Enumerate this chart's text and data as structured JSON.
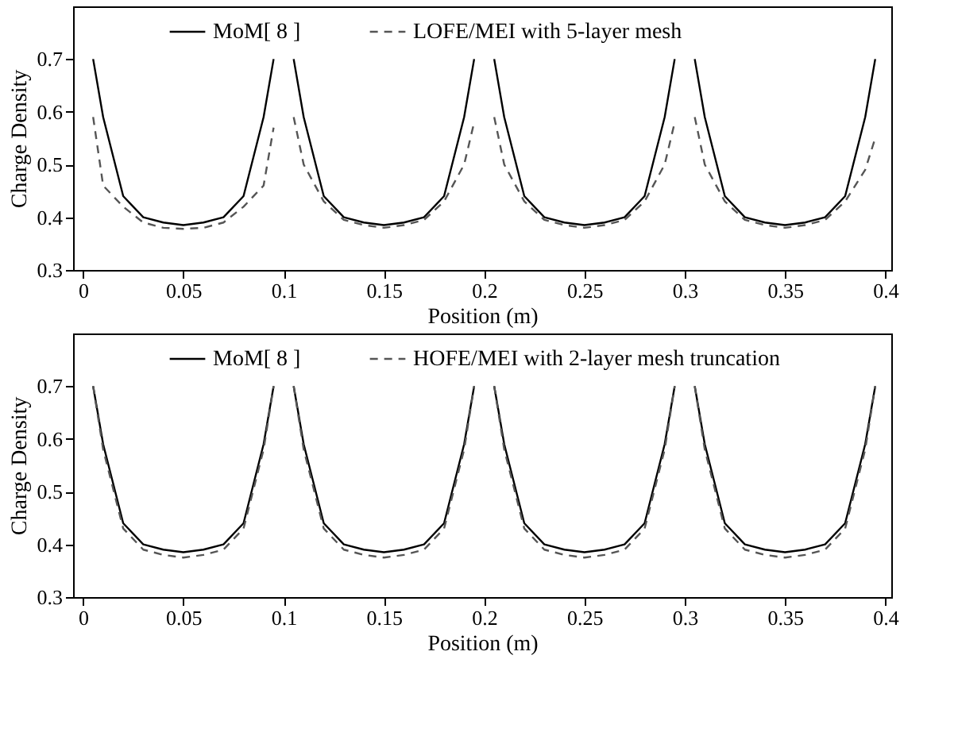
{
  "chart_data": [
    {
      "type": "line",
      "xlabel": "Position (m)",
      "ylabel": "Charge Density",
      "xlim": [
        -0.005,
        0.403
      ],
      "ylim": [
        0.3,
        0.8
      ],
      "xticks": [
        0,
        0.05,
        0.1,
        0.15,
        0.2,
        0.25,
        0.3,
        0.35,
        0.4
      ],
      "yticks": [
        0.3,
        0.4,
        0.5,
        0.6,
        0.7
      ],
      "grid": false,
      "legend": "top",
      "marker": "none",
      "series": [
        {
          "name": "MoM[ 8 ]",
          "color": "#000000",
          "line_style": "solid",
          "x": [
            0.005,
            0.01,
            0.02,
            0.03,
            0.04,
            0.05,
            0.06,
            0.07,
            0.08,
            0.09,
            0.095,
            0.1,
            0.105,
            0.11,
            0.12,
            0.13,
            0.14,
            0.15,
            0.16,
            0.17,
            0.18,
            0.19,
            0.195,
            0.2,
            0.205,
            0.21,
            0.22,
            0.23,
            0.24,
            0.25,
            0.26,
            0.27,
            0.28,
            0.29,
            0.295,
            0.3,
            0.305,
            0.31,
            0.32,
            0.33,
            0.34,
            0.35,
            0.36,
            0.37,
            0.38,
            0.39,
            0.395
          ],
          "values": [
            0.7,
            0.59,
            0.44,
            0.4,
            0.39,
            0.385,
            0.39,
            0.4,
            0.44,
            0.59,
            0.7,
            null,
            0.7,
            0.59,
            0.44,
            0.4,
            0.39,
            0.385,
            0.39,
            0.4,
            0.44,
            0.59,
            0.7,
            null,
            0.7,
            0.59,
            0.44,
            0.4,
            0.39,
            0.385,
            0.39,
            0.4,
            0.44,
            0.59,
            0.7,
            null,
            0.7,
            0.59,
            0.44,
            0.4,
            0.39,
            0.385,
            0.39,
            0.4,
            0.44,
            0.59,
            0.7
          ]
        },
        {
          "name": "LOFE/MEI with 5-layer mesh",
          "color": "#555555",
          "line_style": "dashed",
          "x": [
            0.005,
            0.01,
            0.02,
            0.03,
            0.04,
            0.05,
            0.06,
            0.07,
            0.08,
            0.09,
            0.095,
            0.1,
            0.105,
            0.11,
            0.12,
            0.13,
            0.14,
            0.15,
            0.16,
            0.17,
            0.18,
            0.19,
            0.195,
            0.2,
            0.205,
            0.21,
            0.22,
            0.23,
            0.24,
            0.25,
            0.26,
            0.27,
            0.28,
            0.29,
            0.295,
            0.3,
            0.305,
            0.31,
            0.32,
            0.33,
            0.34,
            0.35,
            0.36,
            0.37,
            0.38,
            0.39,
            0.395
          ],
          "values": [
            0.59,
            0.46,
            0.42,
            0.39,
            0.38,
            0.378,
            0.38,
            0.39,
            0.42,
            0.46,
            0.57,
            null,
            0.59,
            0.5,
            0.43,
            0.395,
            0.385,
            0.38,
            0.385,
            0.395,
            0.43,
            0.5,
            0.58,
            null,
            0.59,
            0.5,
            0.43,
            0.395,
            0.385,
            0.38,
            0.385,
            0.395,
            0.43,
            0.5,
            0.58,
            null,
            0.59,
            0.5,
            0.43,
            0.395,
            0.385,
            0.38,
            0.385,
            0.395,
            0.43,
            0.49,
            0.55
          ]
        }
      ]
    },
    {
      "type": "line",
      "xlabel": "Position (m)",
      "ylabel": "Charge Density",
      "xlim": [
        -0.005,
        0.403
      ],
      "ylim": [
        0.3,
        0.8
      ],
      "xticks": [
        0,
        0.05,
        0.1,
        0.15,
        0.2,
        0.25,
        0.3,
        0.35,
        0.4
      ],
      "yticks": [
        0.3,
        0.4,
        0.5,
        0.6,
        0.7
      ],
      "grid": false,
      "legend": "top",
      "marker": "none",
      "series": [
        {
          "name": "MoM[ 8 ]",
          "color": "#000000",
          "line_style": "solid",
          "x": [
            0.005,
            0.01,
            0.02,
            0.03,
            0.04,
            0.05,
            0.06,
            0.07,
            0.08,
            0.09,
            0.095,
            0.1,
            0.105,
            0.11,
            0.12,
            0.13,
            0.14,
            0.15,
            0.16,
            0.17,
            0.18,
            0.19,
            0.195,
            0.2,
            0.205,
            0.21,
            0.22,
            0.23,
            0.24,
            0.25,
            0.26,
            0.27,
            0.28,
            0.29,
            0.295,
            0.3,
            0.305,
            0.31,
            0.32,
            0.33,
            0.34,
            0.35,
            0.36,
            0.37,
            0.38,
            0.39,
            0.395
          ],
          "values": [
            0.7,
            0.59,
            0.44,
            0.4,
            0.39,
            0.385,
            0.39,
            0.4,
            0.44,
            0.59,
            0.7,
            null,
            0.7,
            0.59,
            0.44,
            0.4,
            0.39,
            0.385,
            0.39,
            0.4,
            0.44,
            0.59,
            0.7,
            null,
            0.7,
            0.59,
            0.44,
            0.4,
            0.39,
            0.385,
            0.39,
            0.4,
            0.44,
            0.59,
            0.7,
            null,
            0.7,
            0.59,
            0.44,
            0.4,
            0.39,
            0.385,
            0.39,
            0.4,
            0.44,
            0.59,
            0.7
          ]
        },
        {
          "name": "HOFE/MEI with 2-layer mesh truncation",
          "color": "#555555",
          "line_style": "dashed",
          "x": [
            0.005,
            0.01,
            0.02,
            0.03,
            0.04,
            0.05,
            0.06,
            0.07,
            0.08,
            0.09,
            0.095,
            0.1,
            0.105,
            0.11,
            0.12,
            0.13,
            0.14,
            0.15,
            0.16,
            0.17,
            0.18,
            0.19,
            0.195,
            0.2,
            0.205,
            0.21,
            0.22,
            0.23,
            0.24,
            0.25,
            0.26,
            0.27,
            0.28,
            0.29,
            0.295,
            0.3,
            0.305,
            0.31,
            0.32,
            0.33,
            0.34,
            0.35,
            0.36,
            0.37,
            0.38,
            0.39,
            0.395
          ],
          "values": [
            0.7,
            0.58,
            0.43,
            0.39,
            0.38,
            0.375,
            0.38,
            0.39,
            0.43,
            0.58,
            0.7,
            null,
            0.7,
            0.58,
            0.43,
            0.39,
            0.38,
            0.375,
            0.38,
            0.39,
            0.43,
            0.58,
            0.7,
            null,
            0.7,
            0.58,
            0.43,
            0.39,
            0.38,
            0.375,
            0.38,
            0.39,
            0.43,
            0.58,
            0.7,
            null,
            0.7,
            0.58,
            0.43,
            0.39,
            0.38,
            0.375,
            0.38,
            0.39,
            0.43,
            0.58,
            0.7
          ]
        }
      ]
    }
  ]
}
